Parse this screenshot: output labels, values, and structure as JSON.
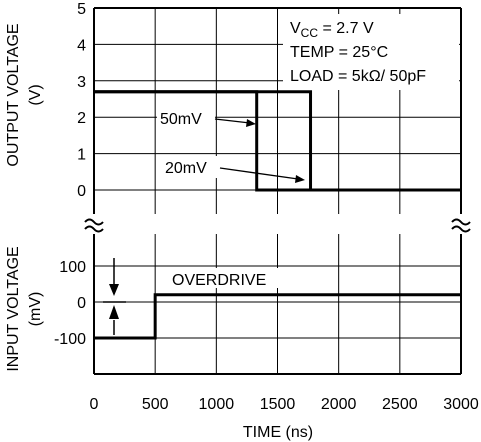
{
  "chart_data": [
    {
      "type": "line",
      "panel": "output",
      "ylabel_line1": "OUTPUT VOLTAGE",
      "ylabel_line2": "(V)",
      "ylim": [
        0,
        5
      ],
      "yticks": [
        "0",
        "1",
        "2",
        "3",
        "4",
        "5"
      ],
      "grid": true,
      "series": [
        {
          "name": "50mV",
          "x": [
            0,
            1330,
            1330,
            3000
          ],
          "y": [
            2.7,
            2.7,
            0,
            0
          ]
        },
        {
          "name": "20mV",
          "x": [
            0,
            1770,
            1770,
            3000
          ],
          "y": [
            2.7,
            2.7,
            0,
            0
          ]
        }
      ],
      "annotations": {
        "vcc": "V",
        "vcc_sub": "CC",
        "vcc_rest": " = 2.7 V",
        "temp": "TEMP = 25°C",
        "load": "LOAD = 5kΩ/ 50pF"
      }
    },
    {
      "type": "line",
      "panel": "input",
      "ylabel_line1": "INPUT VOLTAGE",
      "ylabel_line2": "(mV)",
      "ylim": [
        -200,
        100
      ],
      "yticks": [
        "100",
        "0",
        "-100"
      ],
      "grid": true,
      "series": [
        {
          "name": "input",
          "x": [
            0,
            500,
            500,
            3000
          ],
          "y": [
            -100,
            -100,
            20,
            20
          ]
        }
      ],
      "annotations": {
        "overdrive": "OVERDRIVE"
      },
      "xlabel": "TIME (ns)",
      "xlim": [
        0,
        3000
      ],
      "xticks": [
        "0",
        "500",
        "1000",
        "1500",
        "2000",
        "2500",
        "3000"
      ]
    }
  ]
}
